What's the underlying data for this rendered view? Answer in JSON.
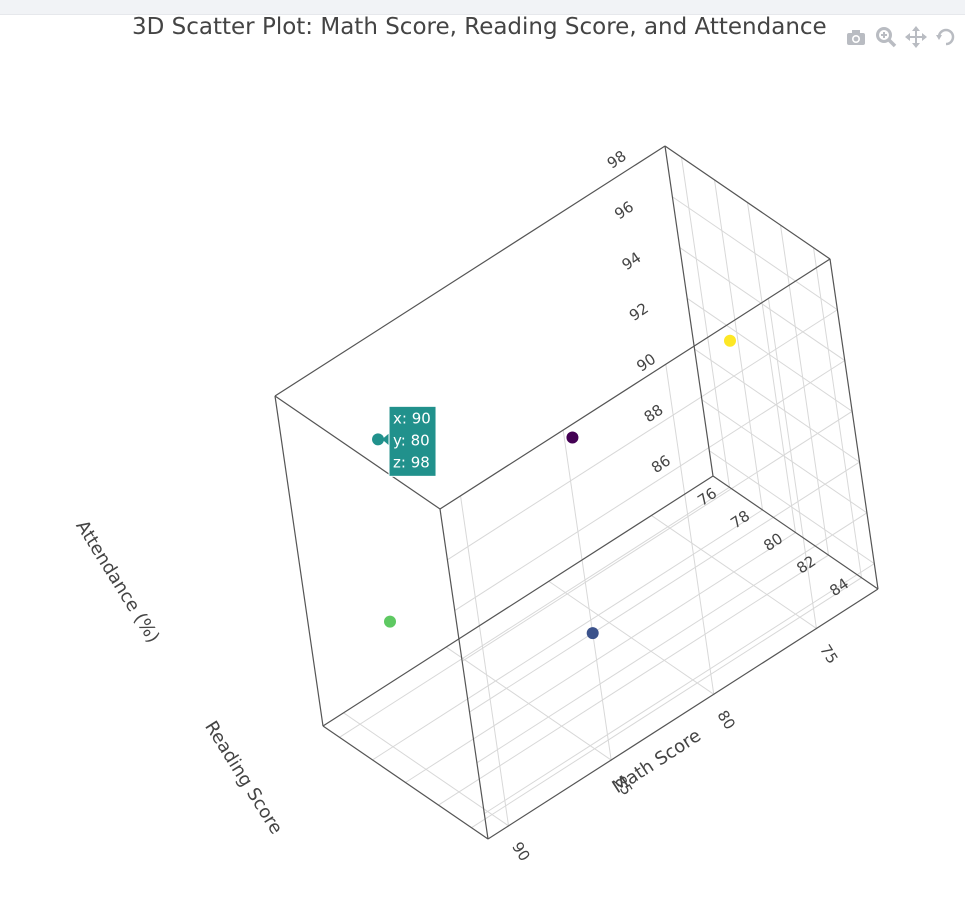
{
  "chart_data": {
    "type": "scatter",
    "title": "3D Scatter Plot: Math Score, Reading Score, and Attendance",
    "axes": {
      "x": {
        "label": "Math Score",
        "ticks": [
          "75",
          "80",
          "85",
          "90"
        ],
        "range": [
          72,
          91
        ]
      },
      "y": {
        "label": "Reading Score",
        "ticks": [
          "76",
          "78",
          "80",
          "82",
          "84"
        ],
        "range": [
          75,
          85
        ]
      },
      "z": {
        "label": "Attendance (%)",
        "ticks": [
          "86",
          "88",
          "90",
          "92",
          "94",
          "96",
          "98"
        ],
        "range": [
          85,
          98
        ]
      }
    },
    "points": [
      {
        "x": 90,
        "y": 80,
        "z": 98,
        "color": "#21918c"
      },
      {
        "x": 85,
        "y": 85,
        "z": 90,
        "color": "#3b528b"
      },
      {
        "x": 80,
        "y": 78,
        "z": 92,
        "color": "#440154"
      },
      {
        "x": 88,
        "y": 76,
        "z": 88,
        "color": "#5ec962"
      },
      {
        "x": 75,
        "y": 82,
        "z": 95,
        "color": "#fde725"
      }
    ],
    "hover": {
      "lines": [
        "x: 90",
        "y: 80",
        "z: 98"
      ],
      "color": "#21918c"
    },
    "grid": true
  },
  "modebar": {
    "icons": [
      "camera-icon",
      "zoom-icon",
      "pan-icon",
      "rotate-icon"
    ]
  }
}
